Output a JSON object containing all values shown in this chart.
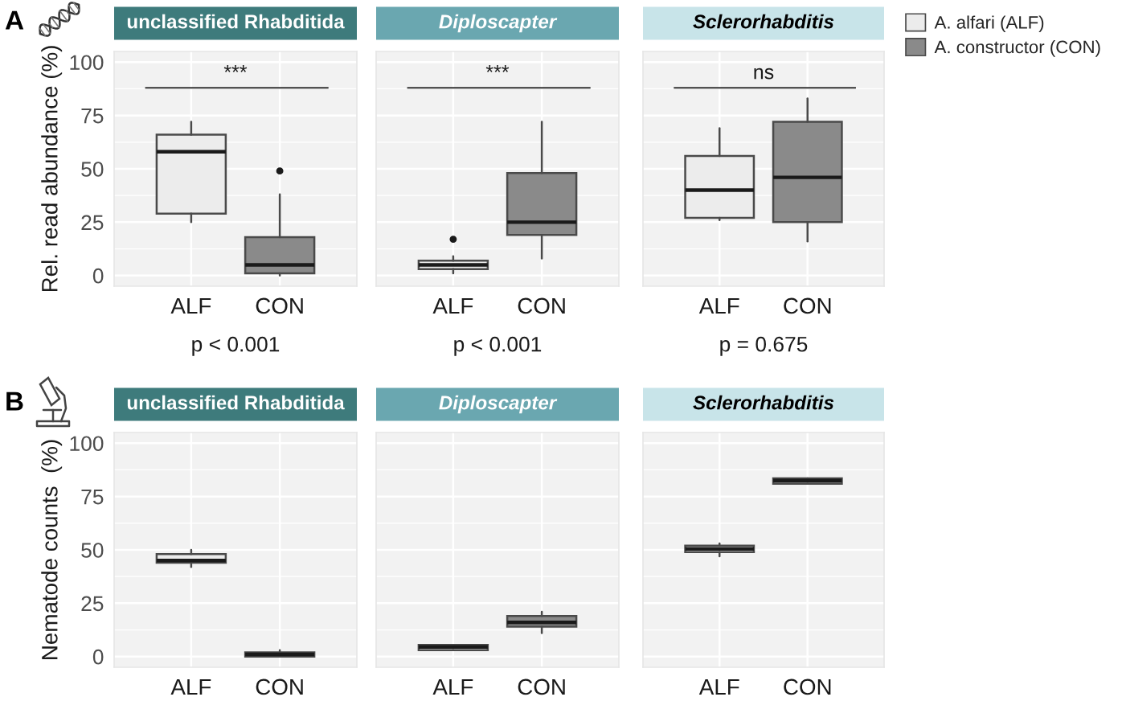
{
  "chart_data": [
    {
      "type": "box",
      "title": "unclassified Rhabditida",
      "categories": [
        "ALF",
        "CON"
      ],
      "ylabel": "Rel. read abundance (%)",
      "ylim": [
        -5,
        105
      ],
      "yticks": [
        0,
        25,
        50,
        75,
        100
      ],
      "grid": true,
      "series": [
        {
          "color": "#ececec",
          "boxes": [
            {
              "low": 25,
              "q1": 29,
              "median": 58,
              "q3": 66,
              "high": 72
            },
            null
          ]
        },
        {
          "color": "#8a8a8a",
          "boxes": [
            null,
            {
              "low": 0,
              "q1": 1,
              "median": 5,
              "q3": 18,
              "high": 38,
              "outliers": [
                49
              ]
            }
          ]
        }
      ],
      "annotations": [
        "A",
        "***",
        "p < 0.001"
      ]
    },
    {
      "type": "box",
      "title": "Diploscapter",
      "categories": [
        "ALF",
        "CON"
      ],
      "ylim": [
        -5,
        105
      ],
      "yticks": [
        0,
        25,
        50,
        75,
        100
      ],
      "grid": true,
      "tick_labels": "x",
      "series": [
        {
          "color": "#ececec",
          "boxes": [
            {
              "low": 1,
              "q1": 3,
              "median": 5,
              "q3": 7,
              "high": 9,
              "outliers": [
                17
              ]
            },
            null
          ]
        },
        {
          "color": "#8a8a8a",
          "boxes": [
            null,
            {
              "low": 8,
              "q1": 19,
              "median": 25,
              "q3": 48,
              "high": 72
            }
          ]
        }
      ],
      "annotations": [
        "***",
        "p < 0.001"
      ]
    },
    {
      "type": "box",
      "title": "Sclerorhabditis",
      "categories": [
        "ALF",
        "CON"
      ],
      "ylim": [
        -5,
        105
      ],
      "yticks": [
        0,
        25,
        50,
        75,
        100
      ],
      "grid": true,
      "tick_labels": "x",
      "legend": "right",
      "series": [
        {
          "name": "A. alfari (ALF)",
          "color": "#ececec",
          "boxes": [
            {
              "low": 26,
              "q1": 27,
              "median": 40,
              "q3": 56,
              "high": 69
            },
            null
          ]
        },
        {
          "name": "A. constructor (CON)",
          "color": "#8a8a8a",
          "boxes": [
            null,
            {
              "low": 16,
              "q1": 25,
              "median": 46,
              "q3": 72,
              "high": 83
            }
          ]
        }
      ],
      "annotations": [
        "ns",
        "p = 0.675"
      ]
    },
    {
      "type": "box",
      "title": "unclassified Rhabditida",
      "categories": [
        "ALF",
        "CON"
      ],
      "ylabel": "Nematode counts  (%)",
      "ylim": [
        -5,
        105
      ],
      "yticks": [
        0,
        25,
        50,
        75,
        100
      ],
      "grid": true,
      "series": [
        {
          "color": "#ececec",
          "boxes": [
            {
              "low": 42,
              "q1": 44,
              "median": 45,
              "q3": 48,
              "high": 50
            },
            null
          ]
        },
        {
          "color": "#8a8a8a",
          "boxes": [
            null,
            {
              "low": 0,
              "q1": 0,
              "median": 1,
              "q3": 2,
              "high": 3
            }
          ]
        }
      ],
      "annotations": [
        "B"
      ]
    },
    {
      "type": "box",
      "title": "Diploscapter",
      "categories": [
        "ALF",
        "CON"
      ],
      "ylim": [
        -5,
        105
      ],
      "yticks": [
        0,
        25,
        50,
        75,
        100
      ],
      "grid": true,
      "tick_labels": "x",
      "series": [
        {
          "color": "#ececec",
          "boxes": [
            {
              "low": 3,
              "q1": 3,
              "median": 4.5,
              "q3": 5.5,
              "high": 5.5
            },
            null
          ]
        },
        {
          "color": "#8a8a8a",
          "boxes": [
            null,
            {
              "low": 11,
              "q1": 14,
              "median": 16,
              "q3": 19,
              "high": 21
            }
          ]
        }
      ]
    },
    {
      "type": "box",
      "title": "Sclerorhabditis",
      "categories": [
        "ALF",
        "CON"
      ],
      "ylim": [
        -5,
        105
      ],
      "yticks": [
        0,
        25,
        50,
        75,
        100
      ],
      "grid": true,
      "tick_labels": "x",
      "series": [
        {
          "color": "#ececec",
          "boxes": [
            {
              "low": 47,
              "q1": 49,
              "median": 50.5,
              "q3": 52,
              "high": 53
            },
            null
          ]
        },
        {
          "color": "#8a8a8a",
          "boxes": [
            null,
            {
              "low": 81,
              "q1": 81,
              "median": 82.5,
              "q3": 83.5,
              "high": 83.5
            }
          ]
        }
      ]
    }
  ]
}
